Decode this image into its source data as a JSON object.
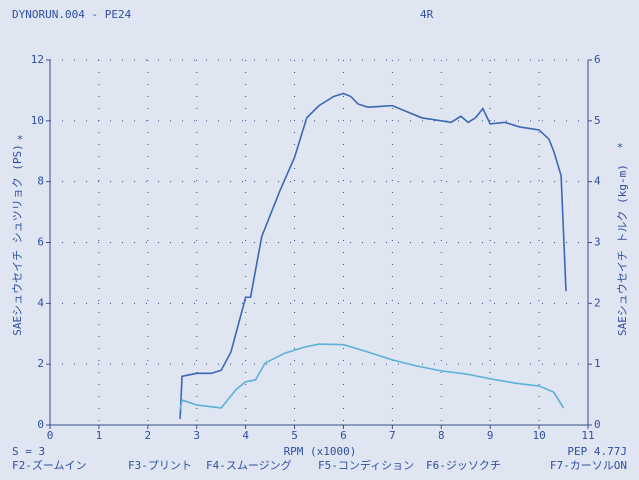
{
  "header": {
    "file": "DYNORUN.004 - PE24",
    "gear": "4R"
  },
  "chart_data": {
    "type": "line",
    "ylabel": "SAEシュウセイチ シュツリョク (PS)",
    "y2label": "SAEシュウセイチ トルク (kg-m)",
    "xlabel": "RPM (x1000)",
    "markers": [
      "*",
      "*"
    ],
    "xlim": [
      0,
      11
    ],
    "xticks": [
      0,
      1,
      2,
      3,
      4,
      5,
      6,
      7,
      8,
      9,
      10,
      11
    ],
    "ylim": [
      0,
      12
    ],
    "yticks": [
      0,
      2,
      4,
      6,
      8,
      10,
      12
    ],
    "y2lim": [
      0,
      6
    ],
    "y2ticks": [
      0,
      1,
      2,
      3,
      4,
      5,
      6
    ],
    "grid": true,
    "series": [
      {
        "color": "#3b68b4",
        "x": [
          2.66,
          2.7,
          3.0,
          3.3,
          3.5,
          3.7,
          4.0,
          4.1,
          4.33,
          4.7,
          5.0,
          5.25,
          5.5,
          5.8,
          6.0,
          6.15,
          6.3,
          6.5,
          7.0,
          7.3,
          7.6,
          8.0,
          8.2,
          8.4,
          8.55,
          8.7,
          8.85,
          9.0,
          9.3,
          9.6,
          9.8,
          10.0,
          10.2,
          10.3,
          10.45,
          10.55
        ],
        "values": [
          0.2,
          1.6,
          1.7,
          1.7,
          1.8,
          2.4,
          4.2,
          4.2,
          6.2,
          7.7,
          8.8,
          10.1,
          10.5,
          10.8,
          10.9,
          10.8,
          10.55,
          10.45,
          10.5,
          10.3,
          10.1,
          10.0,
          9.95,
          10.15,
          9.95,
          10.1,
          10.4,
          9.9,
          9.95,
          9.8,
          9.75,
          9.7,
          9.4,
          9.0,
          8.2,
          4.4
        ]
      },
      {
        "color": "#5db0d8",
        "axis": "y2",
        "x": [
          2.66,
          2.7,
          3.0,
          3.5,
          3.8,
          4.0,
          4.2,
          4.4,
          4.8,
          5.2,
          5.5,
          6.0,
          6.5,
          7.0,
          7.5,
          8.0,
          8.5,
          9.0,
          9.5,
          10.0,
          10.3,
          10.5
        ],
        "values": [
          0.25,
          0.41,
          0.33,
          0.28,
          0.58,
          0.71,
          0.74,
          1.02,
          1.18,
          1.28,
          1.33,
          1.32,
          1.2,
          1.07,
          0.97,
          0.89,
          0.84,
          0.76,
          0.69,
          0.64,
          0.54,
          0.28
        ]
      }
    ]
  },
  "footer": {
    "smoothing": "S = 3",
    "pep": "PEP 4.77J",
    "keys": [
      "F2-ズームイン",
      "F3-プリント",
      "F4-スムージング",
      "F5-コンディション",
      "F6-ジッソクチ",
      "F7-カーソルON"
    ]
  }
}
